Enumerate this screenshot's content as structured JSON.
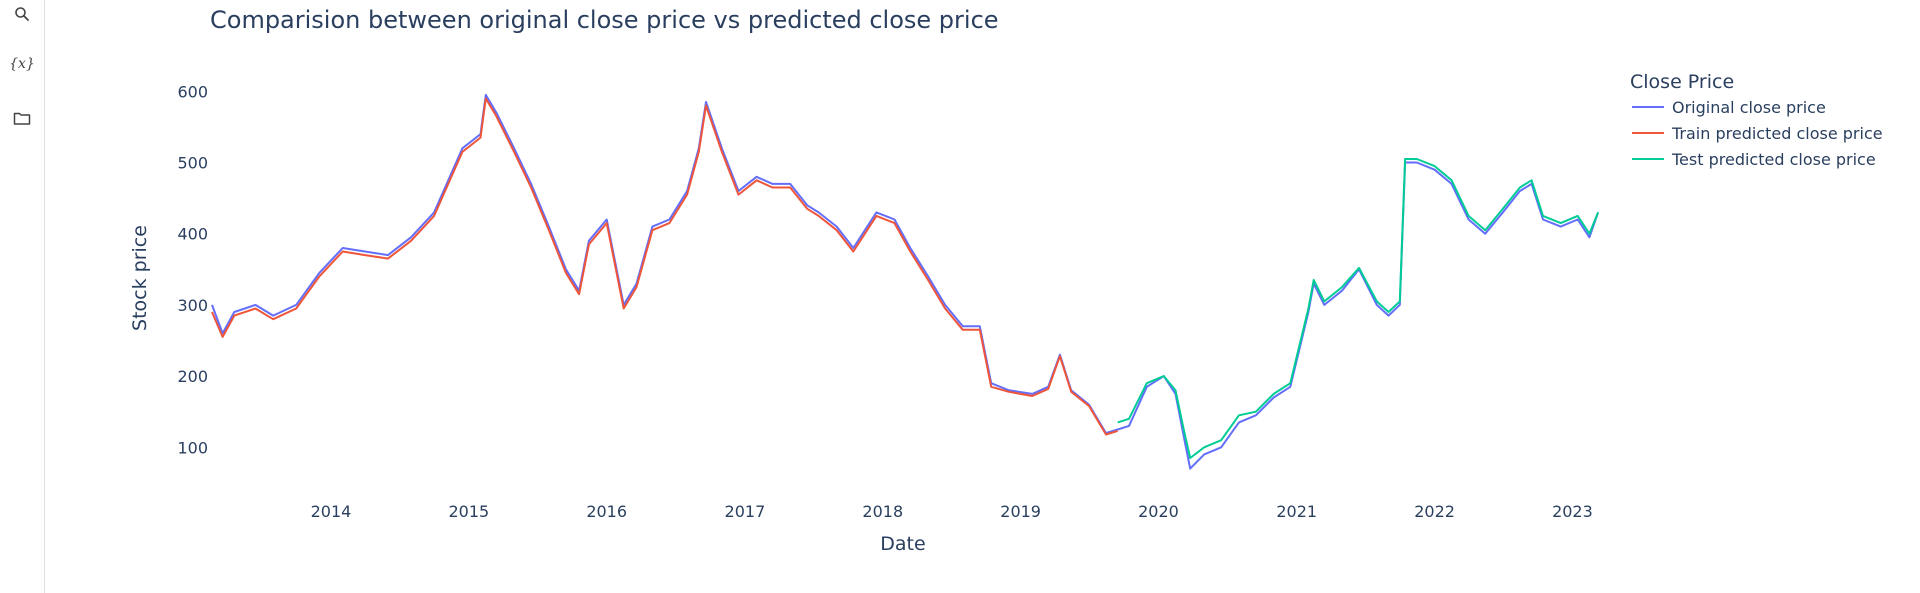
{
  "sidebar": {
    "items": [
      {
        "name": "search",
        "icon": "search-icon"
      },
      {
        "name": "variables",
        "icon": "variables-icon",
        "glyph": "{x}"
      },
      {
        "name": "files",
        "icon": "folder-icon"
      }
    ]
  },
  "chart_data": {
    "type": "line",
    "title": "Comparision between original close price vs predicted close price",
    "xlabel": "Date",
    "ylabel": "Stock price",
    "x_ticks": [
      "2014",
      "2015",
      "2016",
      "2017",
      "2018",
      "2019",
      "2020",
      "2021",
      "2022",
      "2023"
    ],
    "y_ticks": [
      100,
      200,
      300,
      400,
      500,
      600
    ],
    "xlim": [
      "2013-02-20",
      "2023-03-15"
    ],
    "ylim": [
      40,
      630
    ],
    "grid": false,
    "legend": {
      "title": "Close Price",
      "position": "top-right"
    },
    "series": [
      {
        "name": "Original close price",
        "color": "#636efa",
        "x": [
          "2013-02-20",
          "2013-03-20",
          "2013-04-20",
          "2013-06-15",
          "2013-08-01",
          "2013-10-01",
          "2013-12-01",
          "2014-02-01",
          "2014-04-01",
          "2014-06-01",
          "2014-08-01",
          "2014-10-01",
          "2014-12-15",
          "2015-02-01",
          "2015-02-15",
          "2015-03-15",
          "2015-05-01",
          "2015-06-15",
          "2015-08-01",
          "2015-09-15",
          "2015-10-20",
          "2015-11-15",
          "2016-01-01",
          "2016-02-15",
          "2016-03-20",
          "2016-05-01",
          "2016-06-15",
          "2016-08-01",
          "2016-09-01",
          "2016-09-20",
          "2016-11-01",
          "2016-12-15",
          "2017-02-01",
          "2017-03-15",
          "2017-05-01",
          "2017-06-15",
          "2017-07-15",
          "2017-09-01",
          "2017-10-15",
          "2017-12-15",
          "2018-02-01",
          "2018-03-15",
          "2018-05-01",
          "2018-06-15",
          "2018-08-01",
          "2018-09-15",
          "2018-10-15",
          "2018-12-01",
          "2019-02-01",
          "2019-03-15",
          "2019-04-15",
          "2019-05-15",
          "2019-07-01",
          "2019-08-15",
          "2019-09-15",
          "2019-10-15",
          "2019-12-01",
          "2020-01-15",
          "2020-02-15",
          "2020-03-10",
          "2020-03-25",
          "2020-05-01",
          "2020-06-15",
          "2020-08-01",
          "2020-09-15",
          "2020-11-01",
          "2020-12-15",
          "2021-02-01",
          "2021-02-15",
          "2021-03-15",
          "2021-05-01",
          "2021-06-15",
          "2021-08-01",
          "2021-09-01",
          "2021-10-01",
          "2021-10-15",
          "2021-11-15",
          "2022-01-01",
          "2022-02-15",
          "2022-04-01",
          "2022-05-15",
          "2022-07-01",
          "2022-08-15",
          "2022-09-15",
          "2022-10-15",
          "2022-12-01",
          "2023-01-15",
          "2023-02-15",
          "2023-03-10"
        ],
        "y": [
          300,
          260,
          290,
          300,
          285,
          300,
          345,
          380,
          375,
          370,
          395,
          430,
          520,
          540,
          595,
          570,
          520,
          470,
          410,
          350,
          320,
          390,
          420,
          300,
          330,
          410,
          420,
          460,
          520,
          585,
          520,
          460,
          480,
          470,
          470,
          440,
          430,
          410,
          380,
          430,
          420,
          380,
          340,
          300,
          270,
          270,
          190,
          180,
          175,
          185,
          230,
          180,
          160,
          120,
          125,
          130,
          185,
          200,
          175,
          110,
          70,
          90,
          100,
          135,
          145,
          170,
          185,
          290,
          330,
          300,
          320,
          350,
          300,
          285,
          300,
          500,
          500,
          490,
          470,
          420,
          400,
          430,
          460,
          470,
          420,
          410,
          420,
          395,
          430
        ]
      },
      {
        "name": "Train predicted close price",
        "color": "#ef553b",
        "x": [
          "2013-02-20",
          "2013-03-20",
          "2013-04-20",
          "2013-06-15",
          "2013-08-01",
          "2013-10-01",
          "2013-12-01",
          "2014-02-01",
          "2014-04-01",
          "2014-06-01",
          "2014-08-01",
          "2014-10-01",
          "2014-12-15",
          "2015-02-01",
          "2015-02-15",
          "2015-03-15",
          "2015-05-01",
          "2015-06-15",
          "2015-08-01",
          "2015-09-15",
          "2015-10-20",
          "2015-11-15",
          "2016-01-01",
          "2016-02-15",
          "2016-03-20",
          "2016-05-01",
          "2016-06-15",
          "2016-08-01",
          "2016-09-01",
          "2016-09-20",
          "2016-11-01",
          "2016-12-15",
          "2017-02-01",
          "2017-03-15",
          "2017-05-01",
          "2017-06-15",
          "2017-07-15",
          "2017-09-01",
          "2017-10-15",
          "2017-12-15",
          "2018-02-01",
          "2018-03-15",
          "2018-05-01",
          "2018-06-15",
          "2018-08-01",
          "2018-09-15",
          "2018-10-15",
          "2018-12-01",
          "2019-02-01",
          "2019-03-15",
          "2019-04-15",
          "2019-05-15",
          "2019-07-01",
          "2019-08-15",
          "2019-09-15"
        ],
        "y": [
          290,
          255,
          285,
          295,
          280,
          295,
          340,
          375,
          370,
          365,
          390,
          425,
          515,
          535,
          590,
          565,
          515,
          465,
          405,
          345,
          315,
          385,
          415,
          295,
          325,
          405,
          415,
          455,
          515,
          580,
          515,
          455,
          475,
          465,
          465,
          435,
          425,
          405,
          375,
          425,
          415,
          375,
          335,
          295,
          265,
          265,
          185,
          178,
          172,
          182,
          228,
          178,
          158,
          118,
          123
        ]
      },
      {
        "name": "Test predicted close price",
        "color": "#00cc96",
        "x": [
          "2019-09-15",
          "2019-10-15",
          "2019-12-01",
          "2020-01-15",
          "2020-02-15",
          "2020-03-10",
          "2020-03-25",
          "2020-05-01",
          "2020-06-15",
          "2020-08-01",
          "2020-09-15",
          "2020-11-01",
          "2020-12-15",
          "2021-02-01",
          "2021-02-15",
          "2021-03-15",
          "2021-05-01",
          "2021-06-15",
          "2021-08-01",
          "2021-09-01",
          "2021-10-01",
          "2021-10-15",
          "2021-11-15",
          "2022-01-01",
          "2022-02-15",
          "2022-04-01",
          "2022-05-15",
          "2022-07-01",
          "2022-08-15",
          "2022-09-15",
          "2022-10-15",
          "2022-12-01",
          "2023-01-15",
          "2023-02-15",
          "2023-03-10"
        ],
        "y": [
          135,
          140,
          190,
          200,
          180,
          120,
          85,
          100,
          110,
          145,
          150,
          175,
          190,
          295,
          335,
          305,
          325,
          352,
          305,
          290,
          305,
          505,
          505,
          495,
          475,
          425,
          405,
          435,
          465,
          475,
          425,
          415,
          425,
          400,
          430
        ]
      }
    ]
  }
}
